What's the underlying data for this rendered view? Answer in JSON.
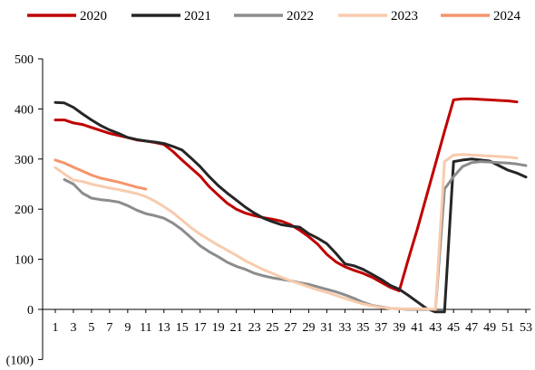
{
  "chart_data": {
    "type": "line",
    "title": "",
    "xlabel": "",
    "ylabel": "",
    "ylim": [
      -100,
      500
    ],
    "y_ticks": [
      "500",
      "400",
      "300",
      "200",
      "100",
      "0",
      "(100)"
    ],
    "y_tick_values": [
      500,
      400,
      300,
      200,
      100,
      0,
      -100
    ],
    "negative_label_color": "#c00000",
    "x_ticks": [
      1,
      3,
      5,
      7,
      9,
      11,
      13,
      15,
      17,
      19,
      21,
      23,
      25,
      27,
      29,
      31,
      33,
      35,
      37,
      39,
      41,
      43,
      45,
      47,
      49,
      51,
      53
    ],
    "xlim": [
      1,
      53
    ],
    "grid": false,
    "legend_position": "top",
    "series": [
      {
        "name": "2020",
        "color": "#c00000",
        "points": [
          [
            1,
            378
          ],
          [
            2,
            378
          ],
          [
            3,
            372
          ],
          [
            4,
            369
          ],
          [
            5,
            363
          ],
          [
            6,
            357
          ],
          [
            7,
            351
          ],
          [
            8,
            347
          ],
          [
            9,
            343
          ],
          [
            10,
            338
          ],
          [
            11,
            336
          ],
          [
            12,
            333
          ],
          [
            13,
            329
          ],
          [
            14,
            315
          ],
          [
            15,
            298
          ],
          [
            16,
            282
          ],
          [
            17,
            266
          ],
          [
            18,
            245
          ],
          [
            19,
            228
          ],
          [
            20,
            212
          ],
          [
            21,
            200
          ],
          [
            22,
            192
          ],
          [
            23,
            187
          ],
          [
            24,
            183
          ],
          [
            25,
            180
          ],
          [
            26,
            176
          ],
          [
            27,
            169
          ],
          [
            28,
            158
          ],
          [
            29,
            145
          ],
          [
            30,
            130
          ],
          [
            31,
            110
          ],
          [
            32,
            95
          ],
          [
            33,
            85
          ],
          [
            34,
            78
          ],
          [
            35,
            72
          ],
          [
            36,
            64
          ],
          [
            37,
            54
          ],
          [
            38,
            44
          ],
          [
            39,
            37
          ],
          [
            40,
            100
          ],
          [
            41,
            160
          ],
          [
            42,
            225
          ],
          [
            43,
            290
          ],
          [
            44,
            355
          ],
          [
            45,
            418
          ],
          [
            46,
            420
          ],
          [
            47,
            420
          ],
          [
            48,
            419
          ],
          [
            49,
            418
          ],
          [
            50,
            417
          ],
          [
            51,
            416
          ],
          [
            52,
            414
          ]
        ]
      },
      {
        "name": "2021",
        "color": "#262626",
        "points": [
          [
            1,
            413
          ],
          [
            2,
            412
          ],
          [
            3,
            403
          ],
          [
            4,
            390
          ],
          [
            5,
            378
          ],
          [
            6,
            367
          ],
          [
            7,
            358
          ],
          [
            8,
            351
          ],
          [
            9,
            343
          ],
          [
            10,
            339
          ],
          [
            11,
            336
          ],
          [
            12,
            334
          ],
          [
            13,
            331
          ],
          [
            14,
            325
          ],
          [
            15,
            318
          ],
          [
            16,
            302
          ],
          [
            17,
            285
          ],
          [
            18,
            265
          ],
          [
            19,
            247
          ],
          [
            20,
            232
          ],
          [
            21,
            218
          ],
          [
            22,
            204
          ],
          [
            23,
            192
          ],
          [
            24,
            182
          ],
          [
            25,
            175
          ],
          [
            26,
            169
          ],
          [
            27,
            166
          ],
          [
            28,
            164
          ],
          [
            29,
            151
          ],
          [
            30,
            142
          ],
          [
            31,
            131
          ],
          [
            32,
            112
          ],
          [
            33,
            91
          ],
          [
            34,
            87
          ],
          [
            35,
            80
          ],
          [
            36,
            70
          ],
          [
            37,
            60
          ],
          [
            38,
            48
          ],
          [
            39,
            40
          ],
          [
            40,
            28
          ],
          [
            41,
            15
          ],
          [
            42,
            2
          ],
          [
            43,
            -5
          ],
          [
            44,
            -5
          ],
          [
            45,
            295
          ],
          [
            46,
            298
          ],
          [
            47,
            300
          ],
          [
            48,
            298
          ],
          [
            49,
            296
          ],
          [
            50,
            287
          ],
          [
            51,
            278
          ],
          [
            52,
            272
          ],
          [
            53,
            264
          ]
        ]
      },
      {
        "name": "2022",
        "color": "#8c8c8c",
        "points": [
          [
            2,
            259
          ],
          [
            3,
            250
          ],
          [
            4,
            232
          ],
          [
            5,
            222
          ],
          [
            6,
            219
          ],
          [
            7,
            217
          ],
          [
            8,
            214
          ],
          [
            9,
            207
          ],
          [
            10,
            198
          ],
          [
            11,
            191
          ],
          [
            12,
            187
          ],
          [
            13,
            182
          ],
          [
            14,
            172
          ],
          [
            15,
            159
          ],
          [
            16,
            143
          ],
          [
            17,
            127
          ],
          [
            18,
            115
          ],
          [
            19,
            105
          ],
          [
            20,
            94
          ],
          [
            21,
            86
          ],
          [
            22,
            80
          ],
          [
            23,
            72
          ],
          [
            24,
            67
          ],
          [
            25,
            63
          ],
          [
            26,
            60
          ],
          [
            27,
            57
          ],
          [
            28,
            53
          ],
          [
            29,
            50
          ],
          [
            30,
            45
          ],
          [
            31,
            40
          ],
          [
            32,
            35
          ],
          [
            33,
            29
          ],
          [
            34,
            22
          ],
          [
            35,
            14
          ],
          [
            36,
            8
          ],
          [
            37,
            5
          ],
          [
            38,
            2
          ],
          [
            39,
            1
          ],
          [
            40,
            0
          ],
          [
            41,
            0
          ],
          [
            42,
            0
          ],
          [
            43,
            0
          ],
          [
            44,
            240
          ],
          [
            45,
            265
          ],
          [
            46,
            285
          ],
          [
            47,
            293
          ],
          [
            48,
            295
          ],
          [
            49,
            294
          ],
          [
            50,
            293
          ],
          [
            51,
            292
          ],
          [
            52,
            290
          ],
          [
            53,
            287
          ]
        ]
      },
      {
        "name": "2023",
        "color": "#f8cbad",
        "points": [
          [
            1,
            283
          ],
          [
            2,
            270
          ],
          [
            3,
            258
          ],
          [
            4,
            255
          ],
          [
            5,
            250
          ],
          [
            6,
            246
          ],
          [
            7,
            242
          ],
          [
            8,
            239
          ],
          [
            9,
            235
          ],
          [
            10,
            231
          ],
          [
            11,
            225
          ],
          [
            12,
            216
          ],
          [
            13,
            205
          ],
          [
            14,
            193
          ],
          [
            15,
            178
          ],
          [
            16,
            163
          ],
          [
            17,
            150
          ],
          [
            18,
            139
          ],
          [
            19,
            128
          ],
          [
            20,
            118
          ],
          [
            21,
            108
          ],
          [
            22,
            97
          ],
          [
            23,
            88
          ],
          [
            24,
            79
          ],
          [
            25,
            72
          ],
          [
            26,
            64
          ],
          [
            27,
            57
          ],
          [
            28,
            51
          ],
          [
            29,
            45
          ],
          [
            30,
            39
          ],
          [
            31,
            34
          ],
          [
            32,
            28
          ],
          [
            33,
            22
          ],
          [
            34,
            16
          ],
          [
            35,
            11
          ],
          [
            36,
            7
          ],
          [
            37,
            4
          ],
          [
            38,
            2
          ],
          [
            39,
            1
          ],
          [
            40,
            1
          ],
          [
            41,
            1
          ],
          [
            42,
            1
          ],
          [
            43,
            0
          ],
          [
            44,
            295
          ],
          [
            45,
            308
          ],
          [
            46,
            309
          ],
          [
            47,
            308
          ],
          [
            48,
            307
          ],
          [
            49,
            306
          ],
          [
            50,
            305
          ],
          [
            51,
            304
          ],
          [
            52,
            302
          ]
        ]
      },
      {
        "name": "2024",
        "color": "#f4956b",
        "points": [
          [
            1,
            298
          ],
          [
            2,
            292
          ],
          [
            3,
            284
          ],
          [
            4,
            276
          ],
          [
            5,
            268
          ],
          [
            6,
            262
          ],
          [
            7,
            258
          ],
          [
            8,
            254
          ],
          [
            9,
            249
          ],
          [
            10,
            244
          ],
          [
            11,
            240
          ]
        ]
      }
    ]
  }
}
